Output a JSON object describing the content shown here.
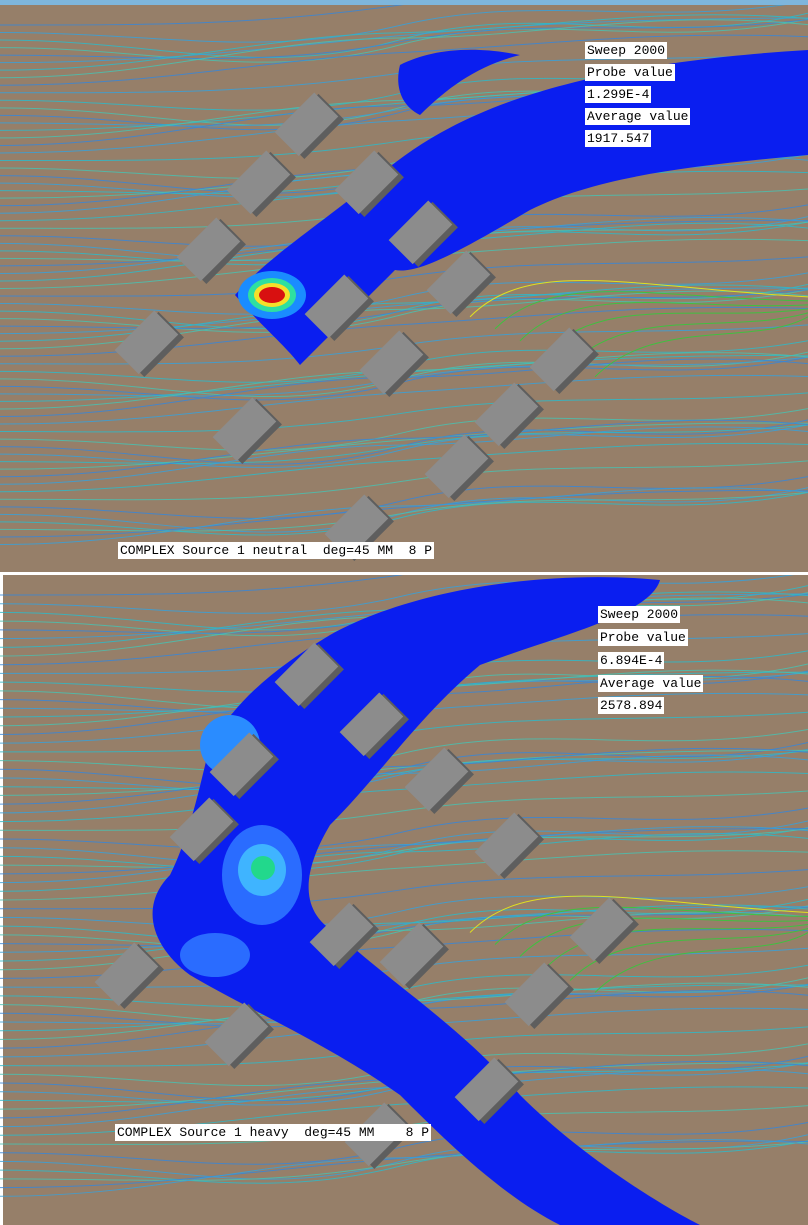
{
  "panels": [
    {
      "sweep": "Sweep 2000",
      "probe_label": "Probe value",
      "probe_value": "1.299E-4",
      "average_label": "Average value",
      "average_value": "1917.547",
      "caption": "COMPLEX Source 1 neutral  deg=45 MM  8 P"
    },
    {
      "sweep": "Sweep 2000",
      "probe_label": "Probe value",
      "probe_value": "6.894E-4",
      "average_label": "Average value",
      "average_value": "2578.894",
      "caption": "COMPLEX Source 1 heavy  deg=45 MM    8 P"
    }
  ]
}
